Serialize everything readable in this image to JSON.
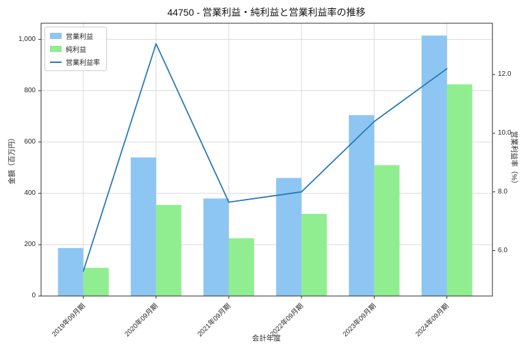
{
  "title": "44750 - 営業利益・純利益と営業利益率の推移",
  "chart_data": {
    "type": "bar",
    "subtype": "grouped-bars-with-line",
    "categories": [
      "2019年09月期",
      "2020年09月期",
      "2021年09月期",
      "2022年09月期",
      "2023年09月期",
      "2024年09月期"
    ],
    "series": [
      {
        "name": "営業利益",
        "type": "bar",
        "axis": "left",
        "color": "#8dc6f2",
        "values": [
          187,
          540,
          380,
          460,
          705,
          1015
        ]
      },
      {
        "name": "純利益",
        "type": "bar",
        "axis": "left",
        "color": "#90ee90",
        "values": [
          110,
          355,
          225,
          320,
          510,
          825
        ]
      },
      {
        "name": "営業利益率",
        "type": "line",
        "axis": "right",
        "color": "#2878b5",
        "values": [
          5.3,
          13.05,
          7.65,
          8.0,
          10.4,
          12.2
        ]
      }
    ],
    "xlabel": "会計年度",
    "ylabel_left": "金額（百万円）",
    "ylabel_right": "営業利益率（%）",
    "yticks_left": {
      "values": [
        0,
        200,
        400,
        600,
        800,
        1000
      ],
      "labels": [
        "0",
        "200",
        "400",
        "600",
        "800",
        "1,000"
      ]
    },
    "yticks_right": {
      "values": [
        6,
        8,
        10,
        12
      ],
      "labels": [
        "6.0",
        "8.0",
        "10.0",
        "12.0"
      ]
    },
    "ylim_left": [
      0,
      1063
    ],
    "ylim_right": [
      4.45,
      13.75
    ],
    "grid": true,
    "legend_position": "upper-left",
    "grid_color": "#d9d9d9",
    "spine_color": "#2b2b2b",
    "text_color": "#262626"
  }
}
